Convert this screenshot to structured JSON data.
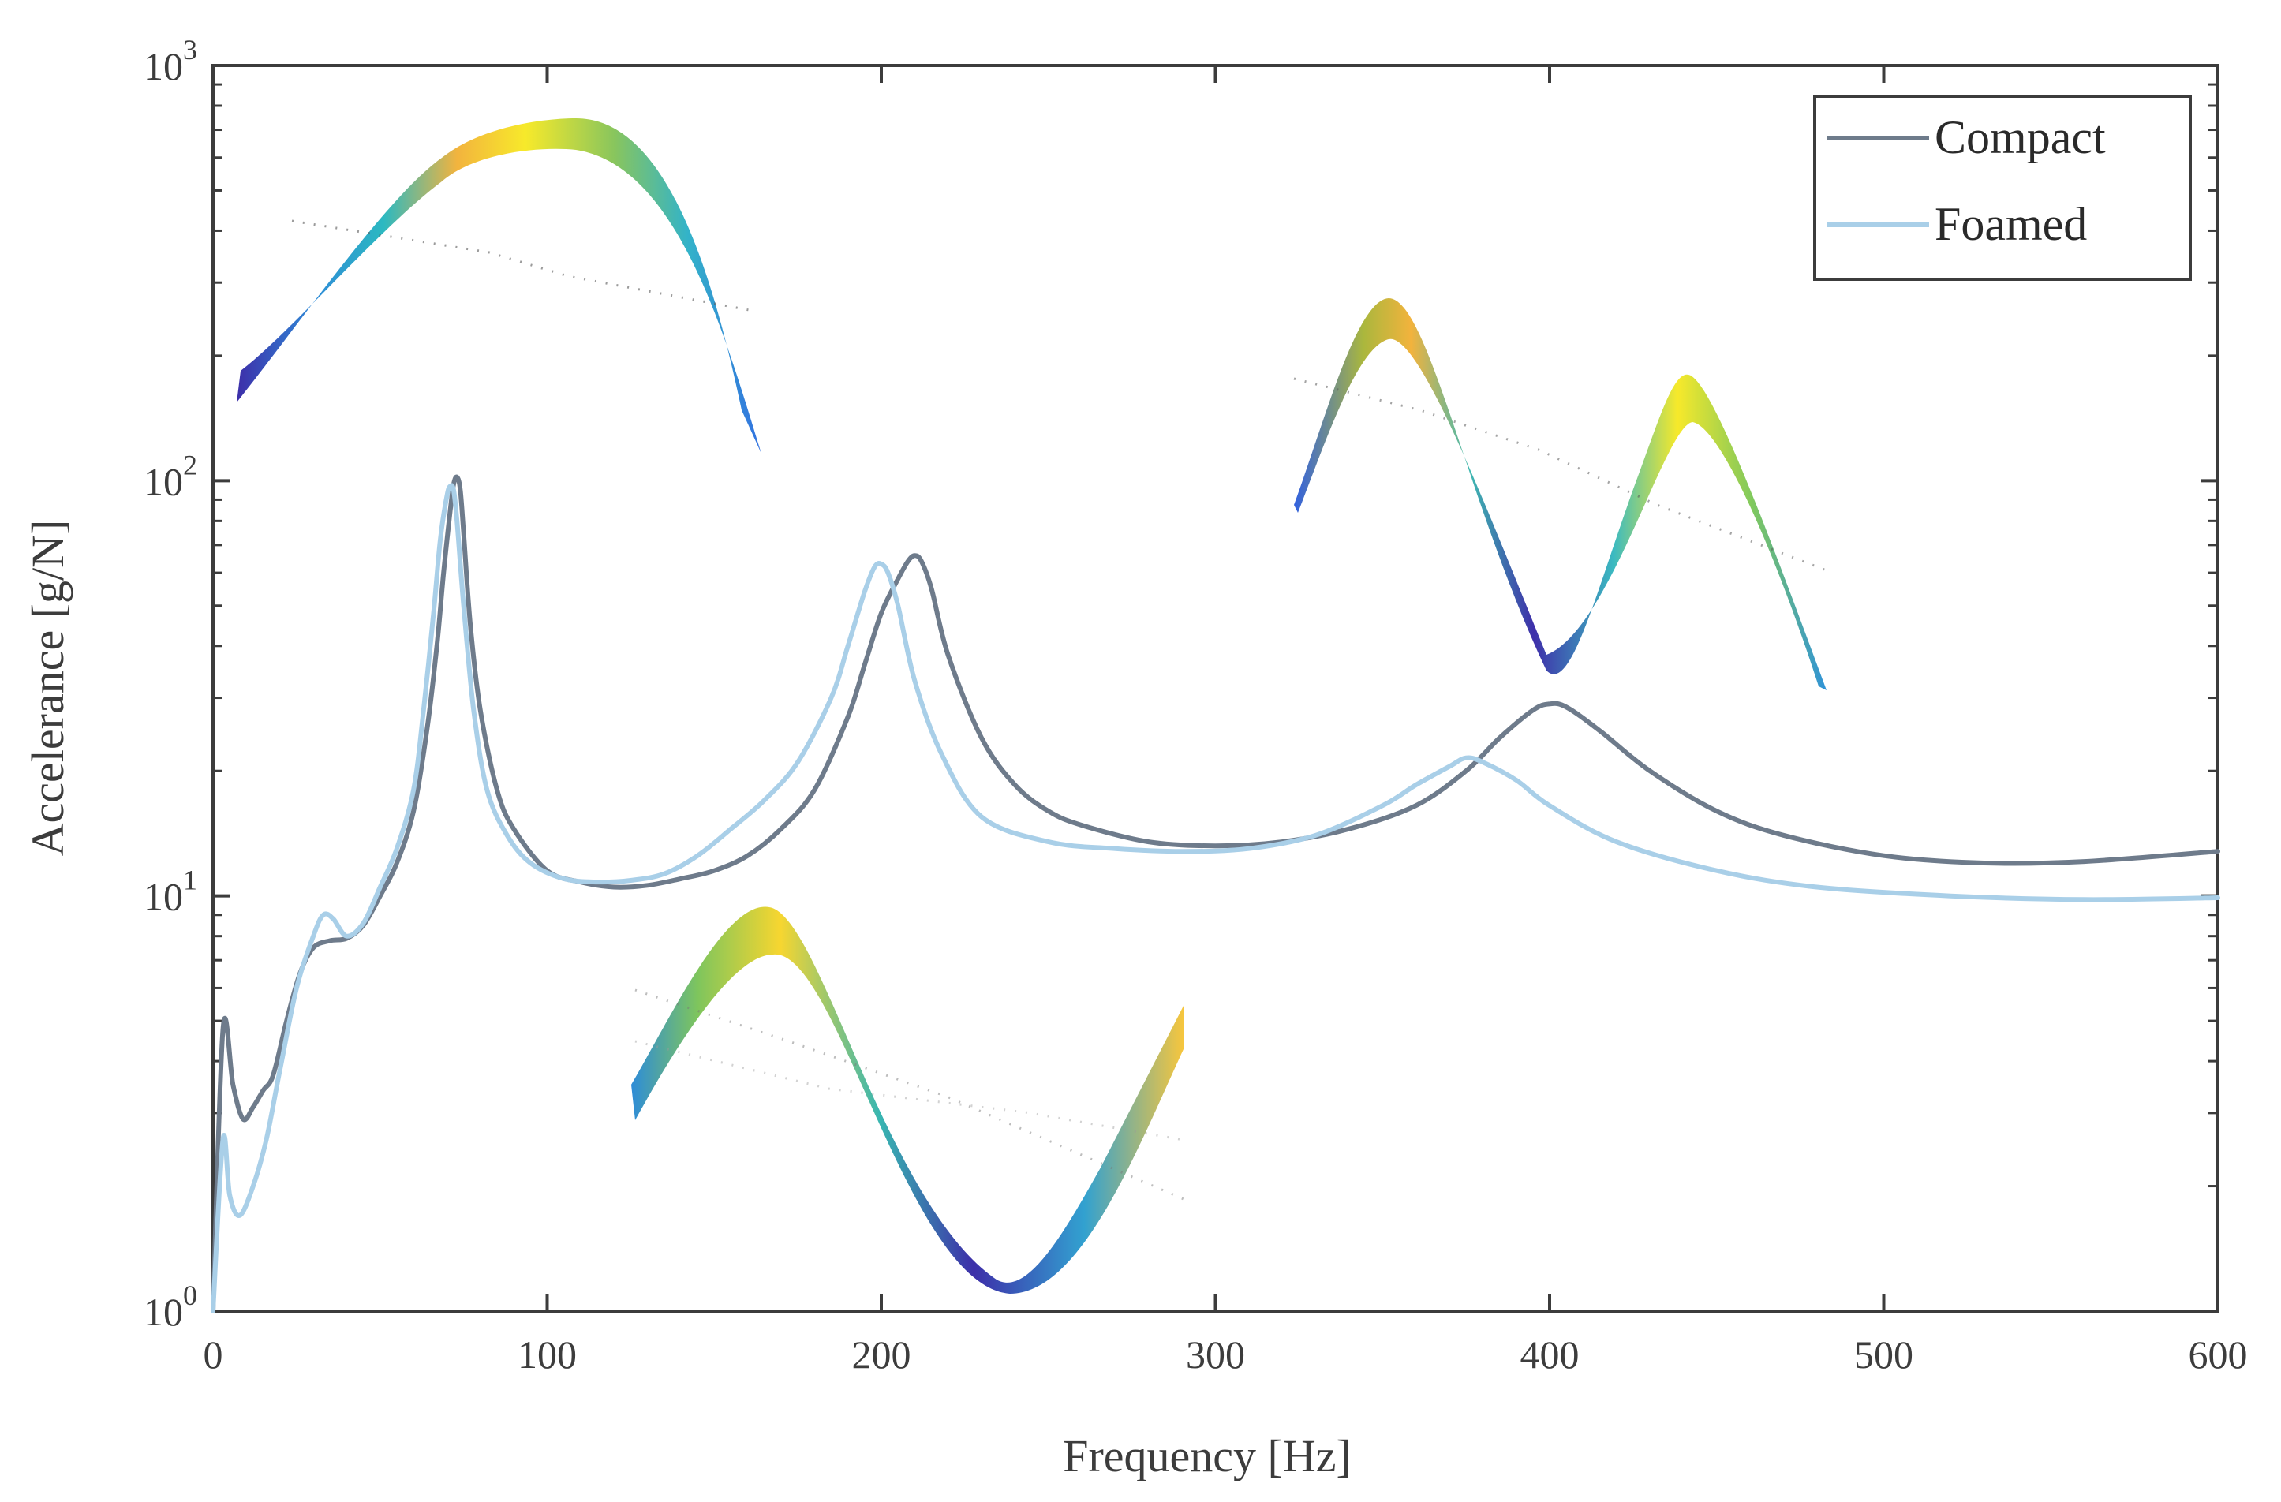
{
  "chart_data": {
    "type": "line",
    "xlabel": "Frequency [Hz]",
    "ylabel": "Accelerance [g/N]",
    "xlim": [
      0,
      600
    ],
    "ylim": [
      1,
      1000
    ],
    "yscale": "log",
    "x_ticks": [
      "0",
      "100",
      "200",
      "300",
      "400",
      "500",
      "600"
    ],
    "y_ticks": [
      {
        "base": "10",
        "exp": "0"
      },
      {
        "base": "10",
        "exp": "1"
      },
      {
        "base": "10",
        "exp": "2"
      },
      {
        "base": "10",
        "exp": "3"
      }
    ],
    "legend": {
      "position": "top-right",
      "entries": [
        "Compact",
        "Foamed"
      ]
    },
    "colors": {
      "Compact": "#6e7b8b",
      "Foamed": "#a9cfe8",
      "axis": "#3c3c3c"
    },
    "series": [
      {
        "name": "Compact",
        "x": [
          0,
          3,
          6,
          9,
          12,
          15,
          18,
          22,
          26,
          30,
          35,
          40,
          45,
          50,
          55,
          60,
          64,
          67,
          69,
          71,
          72,
          73,
          74,
          75,
          77,
          80,
          85,
          90,
          100,
          110,
          120,
          130,
          140,
          150,
          160,
          170,
          180,
          190,
          195,
          200,
          205,
          208,
          210,
          212,
          215,
          220,
          230,
          240,
          250,
          260,
          280,
          300,
          320,
          340,
          360,
          375,
          385,
          395,
          400,
          405,
          415,
          430,
          450,
          470,
          500,
          530,
          560,
          600
        ],
        "values": [
          1.0,
          4.8,
          3.5,
          2.9,
          3.1,
          3.4,
          3.7,
          5.0,
          6.5,
          7.5,
          7.8,
          7.9,
          8.5,
          10.0,
          12.0,
          16.0,
          25.0,
          40.0,
          60.0,
          85.0,
          98.0,
          102.0,
          95.0,
          75.0,
          45.0,
          28.0,
          18.0,
          14.5,
          11.5,
          10.8,
          10.5,
          10.6,
          11.0,
          11.5,
          12.5,
          14.5,
          18.0,
          27.0,
          36.0,
          48.0,
          58.0,
          64.0,
          66.0,
          64.0,
          55.0,
          38.0,
          24.0,
          18.5,
          16.0,
          14.8,
          13.5,
          13.2,
          13.5,
          14.5,
          16.5,
          20.0,
          24.0,
          28.0,
          29.0,
          28.5,
          25.0,
          20.0,
          16.0,
          14.0,
          12.5,
          12.0,
          12.1,
          12.8
        ]
      },
      {
        "name": "Foamed",
        "x": [
          0,
          3,
          5,
          8,
          12,
          16,
          20,
          25,
          30,
          33,
          36,
          40,
          45,
          50,
          55,
          60,
          63,
          66,
          68,
          70,
          71,
          72,
          73,
          75,
          78,
          82,
          88,
          95,
          105,
          115,
          125,
          135,
          145,
          155,
          165,
          175,
          185,
          190,
          195,
          198,
          200,
          202,
          205,
          210,
          218,
          230,
          250,
          270,
          290,
          310,
          330,
          350,
          360,
          370,
          375,
          380,
          390,
          400,
          420,
          450,
          480,
          520,
          560,
          600
        ],
        "values": [
          1.0,
          2.6,
          1.9,
          1.7,
          2.0,
          2.6,
          3.8,
          6.0,
          8.0,
          9.0,
          8.8,
          8.0,
          8.6,
          10.5,
          13.0,
          18.0,
          28.0,
          48.0,
          72.0,
          92.0,
          97.0,
          95.0,
          80.0,
          50.0,
          28.0,
          18.0,
          14.0,
          12.0,
          11.0,
          10.8,
          10.9,
          11.3,
          12.5,
          14.5,
          17.0,
          21.0,
          30.0,
          40.0,
          54.0,
          62.0,
          63.0,
          60.0,
          50.0,
          33.0,
          22.0,
          15.5,
          13.5,
          13.0,
          12.8,
          13.0,
          14.0,
          16.5,
          18.5,
          20.5,
          21.5,
          21.0,
          19.0,
          16.5,
          13.5,
          11.5,
          10.5,
          10.0,
          9.8,
          9.9
        ]
      }
    ]
  }
}
